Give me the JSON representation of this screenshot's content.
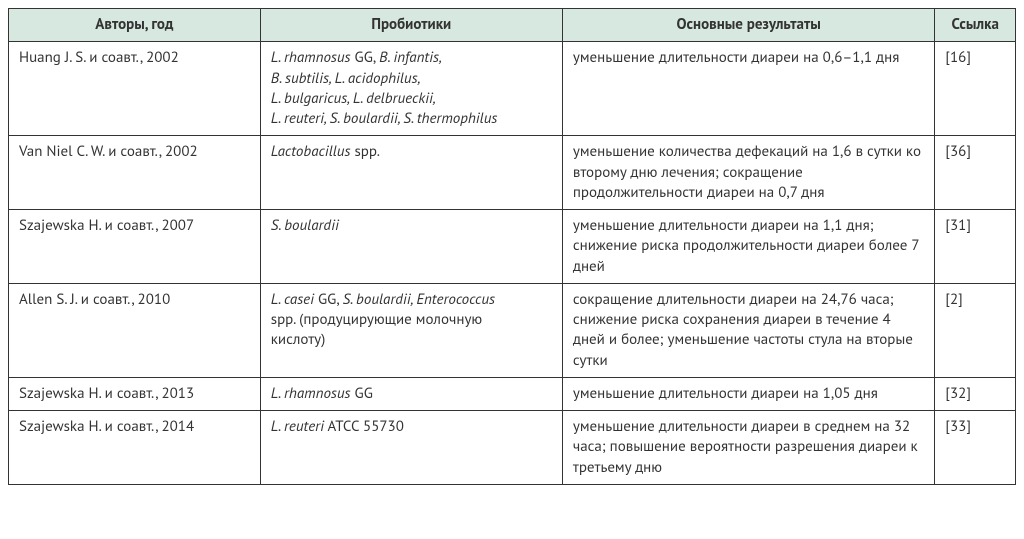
{
  "header_bg": "#d6e8df",
  "border_color": "#333333",
  "columns": [
    {
      "key": "authors",
      "label": "Авторы, год"
    },
    {
      "key": "probiotics",
      "label": "Пробиотики"
    },
    {
      "key": "results",
      "label": "Основные результаты"
    },
    {
      "key": "ref",
      "label": "Ссылка"
    }
  ],
  "rows": [
    {
      "authors": "Huang J. S. и соавт., 2002",
      "probiotics_lines": [
        [
          {
            "t": "L. rhamnosus",
            "i": true
          },
          {
            "t": " GG, ",
            "i": false
          },
          {
            "t": "B. infantis,",
            "i": true
          }
        ],
        [
          {
            "t": "B. subtilis, L. acidophilus,",
            "i": true
          }
        ],
        [
          {
            "t": "L. bulgaricus, L. delbrueckii,",
            "i": true
          }
        ],
        [
          {
            "t": "L. reuteri, S. boulardii, S. thermophilus",
            "i": true
          }
        ]
      ],
      "results": "уменьшение длительности диареи на 0,6–1,1 дня",
      "ref": "[16]"
    },
    {
      "authors": "Van Niel C. W. и соавт., 2002",
      "probiotics_lines": [
        [
          {
            "t": "Lactobacillus",
            "i": true
          },
          {
            "t": " spp.",
            "i": false
          }
        ]
      ],
      "results": "уменьшение количества дефекаций на 1,6 в сутки ко второму дню лечения; сокращение продолжительности диареи на 0,7 дня",
      "ref": "[36]"
    },
    {
      "authors": "Szajewska H. и соавт., 2007",
      "probiotics_lines": [
        [
          {
            "t": "S. boulardii",
            "i": true
          }
        ]
      ],
      "results": "уменьшение длительности диареи на 1,1 дня; снижение риска продолжительности диареи более 7 дней",
      "ref": "[31]"
    },
    {
      "authors": "Allen S. J. и соавт., 2010",
      "probiotics_lines": [
        [
          {
            "t": "L. casei",
            "i": true
          },
          {
            "t": " GG, ",
            "i": false
          },
          {
            "t": "S. boulardii, Enterococcus",
            "i": true
          }
        ],
        [
          {
            "t": "spp. (продуцирующие молочную",
            "i": false
          }
        ],
        [
          {
            "t": "кислоту)",
            "i": false
          }
        ]
      ],
      "results": "сокращение длительности диареи на 24,76 часа; снижение риска сохранения диареи в течение 4 дней и более; уменьшение частоты стула на вторые сутки",
      "ref": "[2]"
    },
    {
      "authors": "Szajewska H. и соавт., 2013",
      "probiotics_lines": [
        [
          {
            "t": "L. rhamnosus",
            "i": true
          },
          {
            "t": " GG",
            "i": false
          }
        ]
      ],
      "results": "уменьшение длительности диареи на 1,05 дня",
      "ref": "[32]"
    },
    {
      "authors": "Szajewska H. и соавт., 2014",
      "probiotics_lines": [
        [
          {
            "t": "L. reuteri",
            "i": true
          },
          {
            "t": " ATCC 55730",
            "i": false
          }
        ]
      ],
      "results": "уменьшение длительности диареи в среднем на 32 часа; повышение вероятности разрешения диареи к третьему дню",
      "ref": "[33]"
    }
  ]
}
